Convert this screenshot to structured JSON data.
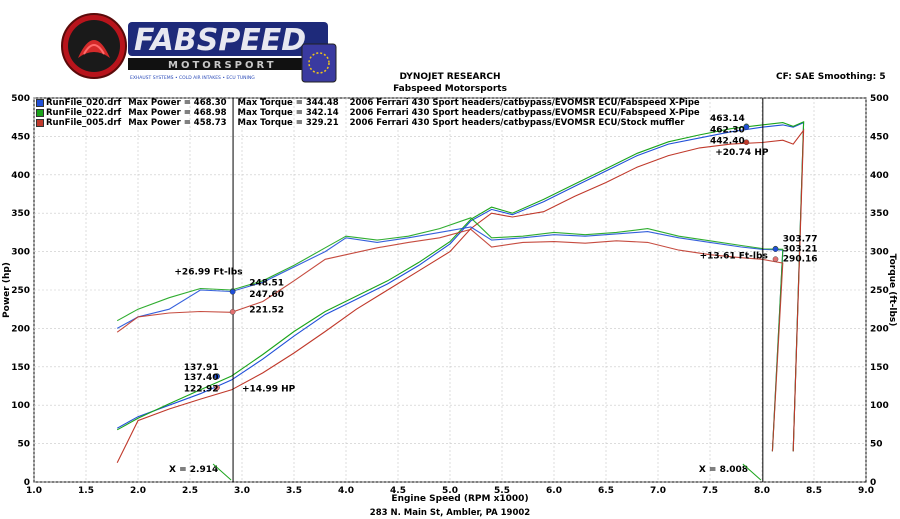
{
  "logo": {
    "line1": "FABSPEED",
    "line2": "MOTORSPORT",
    "tagline": "EXHAUST SYSTEMS • COLD AIR INTAKES • ECU TUNING"
  },
  "header": {
    "title": "DYNOJET RESEARCH",
    "subtitle": "Fabspeed Motorsports",
    "right_info": "CF: SAE  Smoothing: 5",
    "footer_address": "283 N. Main St, Ambler, PA 19002"
  },
  "legend": [
    {
      "file": "RunFile_020.drf",
      "power": "Max Power = 468.30",
      "torque": "Max Torque = 344.48",
      "desc": "2006 Ferrari  430 Sport headers/catbypass/EVOMSR ECU/Fabspeed X-Pipe",
      "color": "#1f4fd8"
    },
    {
      "file": "RunFile_022.drf",
      "power": "Max Power = 468.98",
      "torque": "Max Torque = 342.14",
      "desc": "2006 Ferrari  430 Sport headers/catbypass/EVOMSR ECU/Fabspeed X-Pipe",
      "color": "#1aa41a"
    },
    {
      "file": "RunFile_005.drf",
      "power": "Max Power = 458.73",
      "torque": "Max Torque = 329.21",
      "desc": "2006 Ferrari  430 Sport headers/catbypass/EVOMSR ECU/Stock muffler",
      "color": "#c0392b"
    }
  ],
  "chart_data": {
    "type": "line",
    "xlabel": "Engine Speed (RPM x1000)",
    "ylabel_left": "Power (hp)",
    "ylabel_right": "Torque (ft-lbs)",
    "xlim": [
      1.0,
      9.0
    ],
    "ylim": [
      0,
      500
    ],
    "x_ticks": [
      "1.0",
      "1.5",
      "2.0",
      "2.5",
      "3.0",
      "3.5",
      "4.0",
      "4.5",
      "5.0",
      "5.5",
      "6.0",
      "6.5",
      "7.0",
      "7.5",
      "8.0",
      "8.5",
      "9.0"
    ],
    "y_ticks": [
      "0",
      "50",
      "100",
      "150",
      "200",
      "250",
      "300",
      "350",
      "400",
      "450",
      "500"
    ],
    "grid": true,
    "cursors": [
      {
        "x": 2.914,
        "label": "X = 2.914"
      },
      {
        "x": 8.008,
        "label": "X = 8.008"
      }
    ],
    "series": [
      {
        "name": "RunFile_020.drf",
        "kind": "power",
        "color": "#1f4fd8",
        "x": [
          1.8,
          2.0,
          2.3,
          2.6,
          2.9,
          3.2,
          3.5,
          3.8,
          4.1,
          4.4,
          4.7,
          5.0,
          5.2,
          5.4,
          5.6,
          5.9,
          6.2,
          6.5,
          6.8,
          7.1,
          7.4,
          7.7,
          8.0,
          8.2,
          8.3,
          8.4
        ],
        "y": [
          70,
          85,
          100,
          115,
          133,
          160,
          190,
          218,
          238,
          258,
          282,
          310,
          340,
          355,
          348,
          365,
          385,
          405,
          425,
          440,
          448,
          456,
          462,
          465,
          462,
          468
        ]
      },
      {
        "name": "RunFile_022.drf",
        "kind": "power",
        "color": "#1aa41a",
        "x": [
          1.8,
          2.0,
          2.3,
          2.6,
          2.9,
          3.2,
          3.5,
          3.8,
          4.1,
          4.4,
          4.7,
          5.0,
          5.2,
          5.4,
          5.6,
          5.9,
          6.2,
          6.5,
          6.8,
          7.1,
          7.4,
          7.7,
          8.0,
          8.2,
          8.3,
          8.4
        ],
        "y": [
          68,
          83,
          102,
          120,
          138,
          166,
          196,
          222,
          242,
          262,
          286,
          313,
          342,
          358,
          350,
          368,
          388,
          408,
          428,
          443,
          452,
          460,
          465,
          468,
          463,
          469
        ]
      },
      {
        "name": "RunFile_005.drf",
        "kind": "power",
        "color": "#c0392b",
        "x": [
          1.8,
          2.0,
          2.3,
          2.6,
          2.9,
          3.2,
          3.5,
          3.8,
          4.1,
          4.4,
          4.7,
          5.0,
          5.2,
          5.4,
          5.6,
          5.9,
          6.2,
          6.5,
          6.8,
          7.1,
          7.4,
          7.7,
          8.0,
          8.2,
          8.3,
          8.4
        ],
        "y": [
          25,
          80,
          95,
          108,
          120,
          142,
          168,
          196,
          225,
          250,
          275,
          300,
          330,
          350,
          345,
          352,
          372,
          390,
          410,
          425,
          435,
          440,
          442,
          445,
          440,
          458
        ]
      },
      {
        "name": "RunFile_020.drf",
        "kind": "torque",
        "color": "#1f4fd8",
        "x": [
          1.8,
          2.0,
          2.3,
          2.6,
          2.9,
          3.2,
          3.5,
          3.8,
          4.0,
          4.3,
          4.6,
          4.9,
          5.2,
          5.4,
          5.7,
          6.0,
          6.3,
          6.6,
          6.9,
          7.2,
          7.5,
          7.8,
          8.0,
          8.2
        ],
        "y": [
          200,
          215,
          225,
          250,
          248,
          260,
          280,
          300,
          318,
          312,
          318,
          325,
          332,
          315,
          318,
          322,
          320,
          323,
          326,
          318,
          312,
          306,
          303,
          302
        ]
      },
      {
        "name": "RunFile_022.drf",
        "kind": "torque",
        "color": "#1aa41a",
        "x": [
          1.8,
          2.0,
          2.3,
          2.6,
          2.9,
          3.2,
          3.5,
          3.8,
          4.0,
          4.3,
          4.6,
          4.9,
          5.2,
          5.4,
          5.7,
          6.0,
          6.3,
          6.6,
          6.9,
          7.2,
          7.5,
          7.8,
          8.0,
          8.2
        ],
        "y": [
          210,
          225,
          240,
          252,
          250,
          262,
          282,
          305,
          320,
          315,
          320,
          330,
          344,
          318,
          320,
          325,
          322,
          325,
          330,
          320,
          314,
          308,
          304,
          303
        ]
      },
      {
        "name": "RunFile_005.drf",
        "kind": "torque",
        "color": "#c0392b",
        "x": [
          1.8,
          2.0,
          2.3,
          2.6,
          2.9,
          3.2,
          3.5,
          3.8,
          4.0,
          4.3,
          4.6,
          4.9,
          5.2,
          5.4,
          5.7,
          6.0,
          6.3,
          6.6,
          6.9,
          7.2,
          7.5,
          7.8,
          8.0,
          8.2
        ],
        "y": [
          195,
          215,
          220,
          222,
          221,
          235,
          262,
          290,
          296,
          305,
          312,
          318,
          329,
          306,
          312,
          313,
          311,
          314,
          312,
          302,
          296,
          292,
          290,
          285
        ]
      }
    ],
    "annotations": [
      {
        "text": "+26.99 Ft-lbs",
        "x": 2.35,
        "y": 270
      },
      {
        "text": "248.51",
        "x": 3.07,
        "y": 256
      },
      {
        "text": "247.60",
        "x": 3.07,
        "y": 241
      },
      {
        "text": "221.52",
        "x": 3.07,
        "y": 221
      },
      {
        "text": "137.91",
        "x": 2.44,
        "y": 146
      },
      {
        "text": "137.40",
        "x": 2.44,
        "y": 133
      },
      {
        "text": "122.92",
        "x": 2.44,
        "y": 118
      },
      {
        "text": "+14.99 HP",
        "x": 3.0,
        "y": 118
      },
      {
        "text": "463.14",
        "x": 7.5,
        "y": 470
      },
      {
        "text": "462.30",
        "x": 7.5,
        "y": 455
      },
      {
        "text": "442.40",
        "x": 7.5,
        "y": 441
      },
      {
        "text": "+20.74 HP",
        "x": 7.55,
        "y": 426
      },
      {
        "text": "303.77",
        "x": 8.2,
        "y": 313
      },
      {
        "text": "303.21",
        "x": 8.2,
        "y": 300
      },
      {
        "text": "290.16",
        "x": 8.2,
        "y": 287
      },
      {
        "text": "+13.61 Ft-lbs",
        "x": 7.4,
        "y": 291
      }
    ],
    "markers": [
      {
        "x": 2.91,
        "y": 248.51,
        "color": "#1aa41a"
      },
      {
        "x": 2.91,
        "y": 247.6,
        "color": "#1f4fd8"
      },
      {
        "x": 2.91,
        "y": 221.52,
        "color": "#e07070"
      },
      {
        "x": 2.76,
        "y": 137.91,
        "color": "#1aa41a"
      },
      {
        "x": 2.76,
        "y": 137.4,
        "color": "#1f4fd8"
      },
      {
        "x": 2.76,
        "y": 122.92,
        "color": "#e07070"
      },
      {
        "x": 7.85,
        "y": 463.14,
        "color": "#1aa41a"
      },
      {
        "x": 7.85,
        "y": 462.3,
        "color": "#1f4fd8"
      },
      {
        "x": 7.85,
        "y": 442.4,
        "color": "#c0392b"
      },
      {
        "x": 8.13,
        "y": 303.77,
        "color": "#1aa41a"
      },
      {
        "x": 8.13,
        "y": 303.21,
        "color": "#1f4fd8"
      },
      {
        "x": 8.13,
        "y": 290.16,
        "color": "#e07070"
      }
    ]
  }
}
